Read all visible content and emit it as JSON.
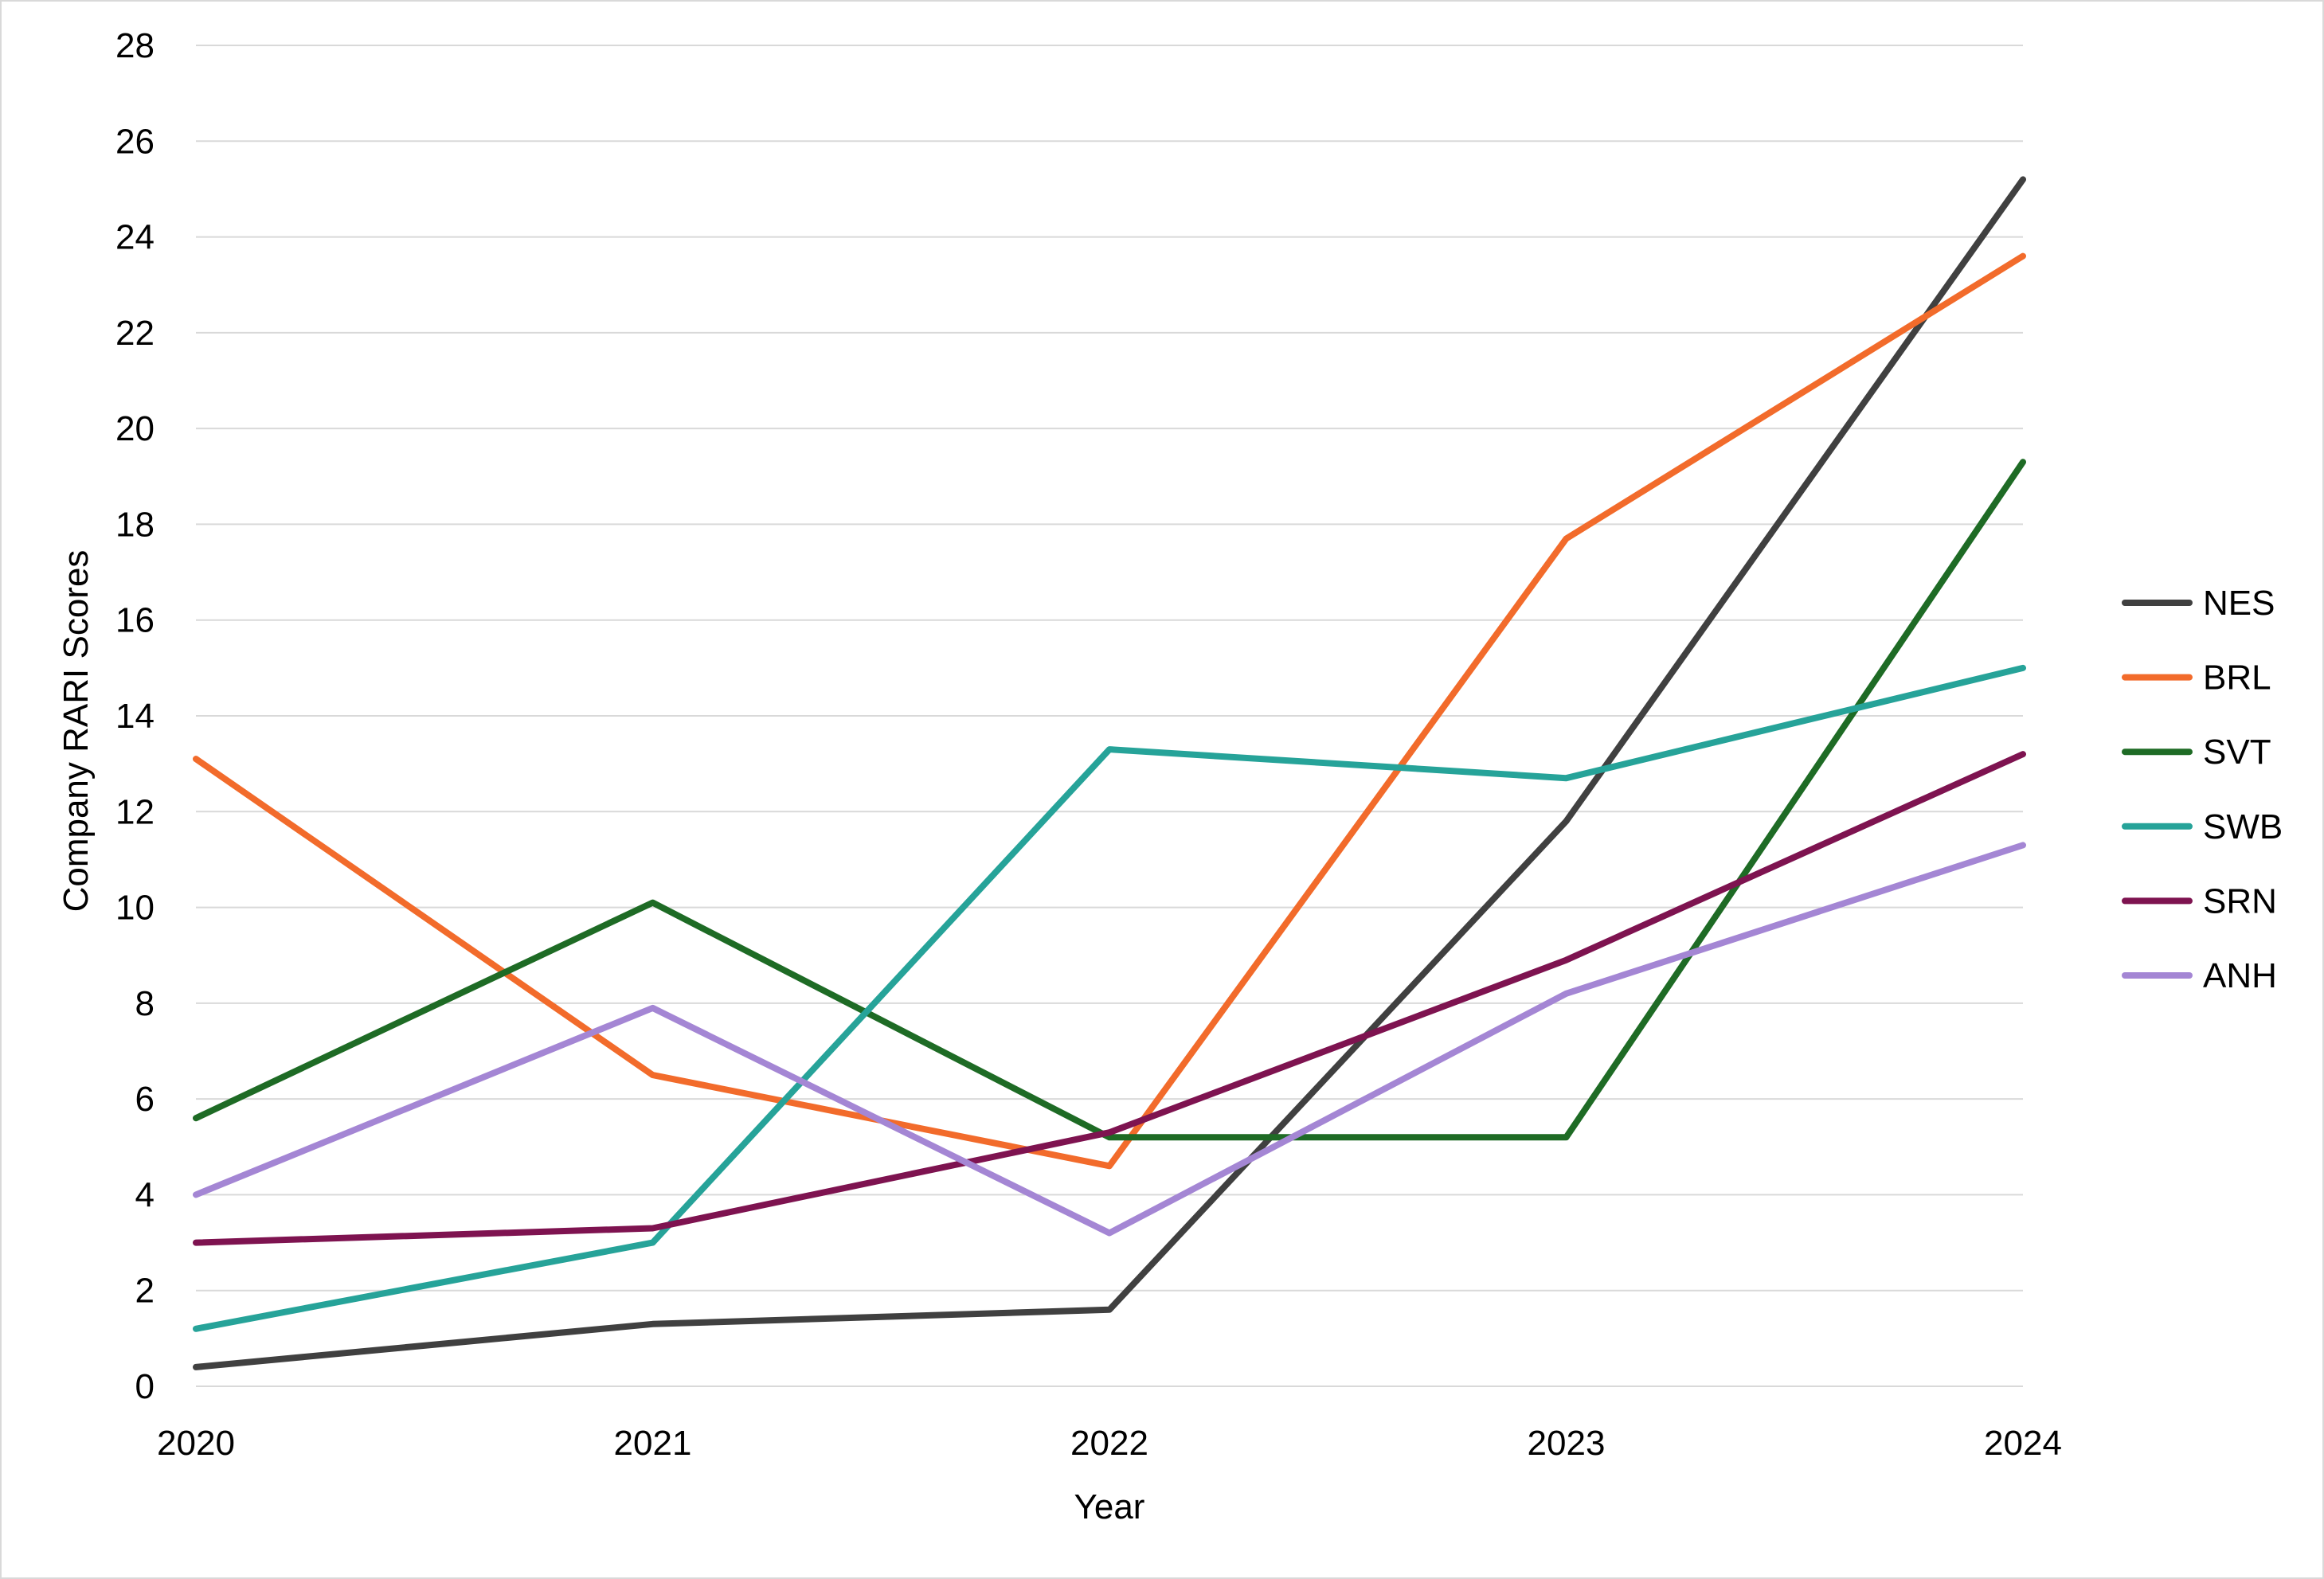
{
  "chart_data": {
    "type": "line",
    "title": "",
    "xlabel": "Year",
    "ylabel": "Company RARI Scores",
    "categories": [
      "2020",
      "2021",
      "2022",
      "2023",
      "2024"
    ],
    "ylim": [
      0,
      28
    ],
    "ytick_step": 2,
    "yticks": [
      "0",
      "2",
      "4",
      "6",
      "8",
      "10",
      "12",
      "14",
      "16",
      "18",
      "20",
      "22",
      "24",
      "26",
      "28"
    ],
    "grid": "horizontal",
    "legend_position": "right",
    "series": [
      {
        "name": "NES",
        "color": "#404040",
        "values": [
          0.4,
          1.3,
          1.6,
          11.8,
          25.2
        ]
      },
      {
        "name": "BRL",
        "color": "#f26b2b",
        "values": [
          13.1,
          6.5,
          4.6,
          17.7,
          23.6
        ]
      },
      {
        "name": "SVT",
        "color": "#1e6b25",
        "values": [
          5.6,
          10.1,
          5.2,
          5.2,
          19.3
        ]
      },
      {
        "name": "SWB",
        "color": "#26a399",
        "values": [
          1.2,
          3.0,
          13.3,
          12.7,
          15.0
        ]
      },
      {
        "name": "SRN",
        "color": "#7e1350",
        "values": [
          3.0,
          3.3,
          5.3,
          8.9,
          13.2
        ]
      },
      {
        "name": "ANH",
        "color": "#a486d4",
        "values": [
          4.0,
          7.9,
          3.2,
          8.2,
          11.3
        ]
      }
    ]
  },
  "colors": {
    "gridline": "#d9d9d9",
    "border": "#d9d9d9",
    "text": "#000000"
  }
}
